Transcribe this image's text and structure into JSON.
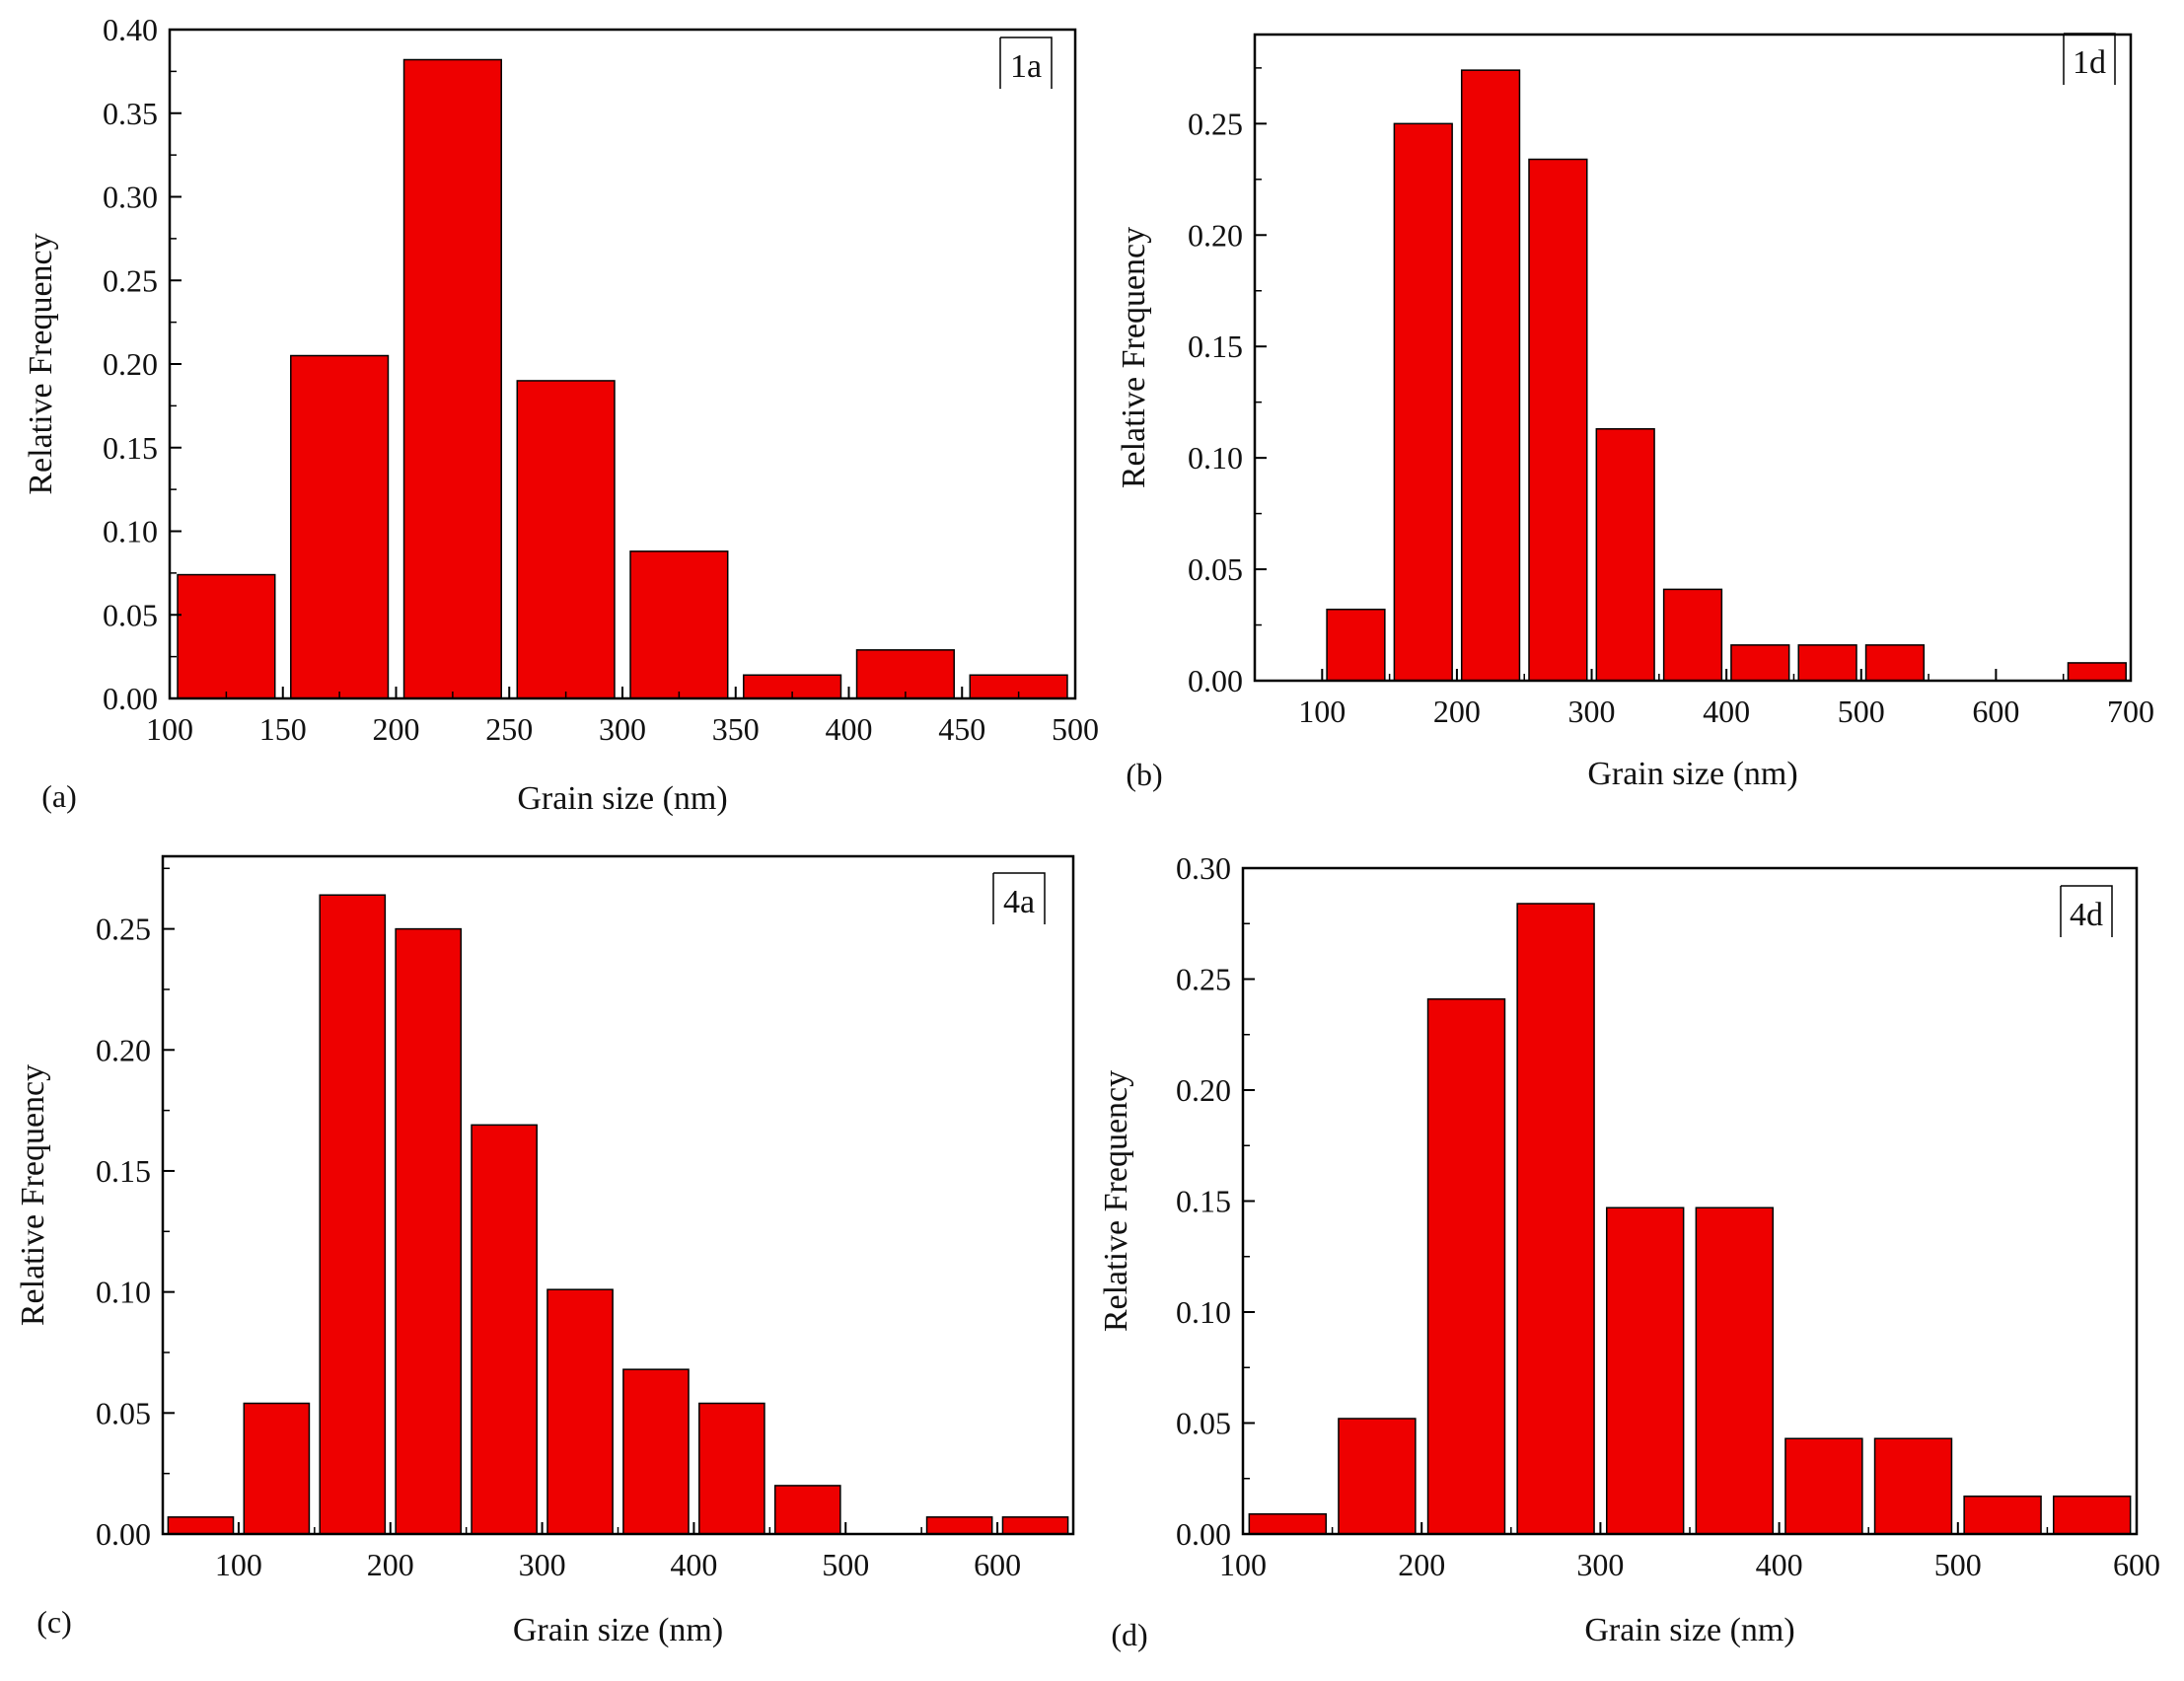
{
  "bar_color": "#ee0000",
  "chart_data": [
    {
      "type": "bar",
      "panel_label": "(a)",
      "tag": "1a",
      "xlabel": "Grain size (nm)",
      "ylabel": "Relative Frequency",
      "xlim": [
        100,
        500
      ],
      "ylim": [
        0,
        0.4
      ],
      "xticks": [
        "100",
        "150",
        "200",
        "250",
        "300",
        "350",
        "400",
        "450",
        "500"
      ],
      "yticks": [
        "0.00",
        "0.05",
        "0.10",
        "0.15",
        "0.20",
        "0.25",
        "0.30",
        "0.35",
        "0.40"
      ],
      "bin_width": 50,
      "bins": [
        [
          100,
          0.074
        ],
        [
          150,
          0.205
        ],
        [
          200,
          0.382
        ],
        [
          250,
          0.19
        ],
        [
          300,
          0.088
        ],
        [
          350,
          0.014
        ],
        [
          400,
          0.029
        ],
        [
          450,
          0.014
        ]
      ],
      "grid": false
    },
    {
      "type": "bar",
      "panel_label": "(b)",
      "tag": "1d",
      "xlabel": "Grain size (nm)",
      "ylabel": "Relative Frequency",
      "xlim": [
        50,
        700
      ],
      "ylim": [
        0,
        0.29
      ],
      "xticks": [
        "100",
        "200",
        "300",
        "400",
        "500",
        "600",
        "700"
      ],
      "yticks": [
        "0.00",
        "0.05",
        "0.10",
        "0.15",
        "0.20",
        "0.25"
      ],
      "bin_width": 50,
      "bins": [
        [
          100,
          0.032
        ],
        [
          150,
          0.25
        ],
        [
          200,
          0.274
        ],
        [
          250,
          0.234
        ],
        [
          300,
          0.113
        ],
        [
          350,
          0.041
        ],
        [
          400,
          0.016
        ],
        [
          450,
          0.016
        ],
        [
          500,
          0.016
        ],
        [
          550,
          0.0
        ],
        [
          600,
          0.0
        ],
        [
          650,
          0.008
        ]
      ],
      "grid": false
    },
    {
      "type": "bar",
      "panel_label": "(c)",
      "tag": "4a",
      "xlabel": "Grain size (nm)",
      "ylabel": "Relative Frequency",
      "xlim": [
        50,
        650
      ],
      "ylim": [
        0,
        0.28
      ],
      "xticks": [
        "100",
        "200",
        "300",
        "400",
        "500",
        "600"
      ],
      "yticks": [
        "0.00",
        "0.05",
        "0.10",
        "0.15",
        "0.20",
        "0.25"
      ],
      "bin_width": 50,
      "bins": [
        [
          50,
          0.007
        ],
        [
          100,
          0.054
        ],
        [
          150,
          0.264
        ],
        [
          200,
          0.25
        ],
        [
          250,
          0.169
        ],
        [
          300,
          0.101
        ],
        [
          350,
          0.068
        ],
        [
          400,
          0.054
        ],
        [
          450,
          0.02
        ],
        [
          500,
          0.0
        ],
        [
          550,
          0.007
        ],
        [
          600,
          0.007
        ]
      ],
      "grid": false
    },
    {
      "type": "bar",
      "panel_label": "(d)",
      "tag": "4d",
      "xlabel": "Grain size (nm)",
      "ylabel": "Relative Frequency",
      "xlim": [
        100,
        600
      ],
      "ylim": [
        0,
        0.3
      ],
      "xticks": [
        "100",
        "200",
        "300",
        "400",
        "500",
        "600"
      ],
      "yticks": [
        "0.00",
        "0.05",
        "0.10",
        "0.15",
        "0.20",
        "0.25",
        "0.30"
      ],
      "bin_width": 50,
      "bins": [
        [
          100,
          0.009
        ],
        [
          150,
          0.052
        ],
        [
          200,
          0.241
        ],
        [
          250,
          0.284
        ],
        [
          300,
          0.147
        ],
        [
          350,
          0.147
        ],
        [
          400,
          0.043
        ],
        [
          450,
          0.043
        ],
        [
          500,
          0.017
        ],
        [
          550,
          0.017
        ]
      ],
      "grid": false
    }
  ]
}
